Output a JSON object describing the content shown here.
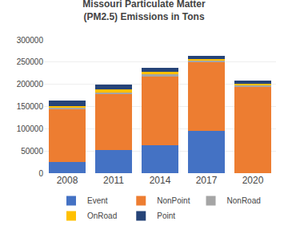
{
  "chart_data": {
    "type": "bar",
    "title": "Missouri Particulate Matter (PM2.5) Emissions in Tons",
    "categories": [
      "2008",
      "2011",
      "2014",
      "2017",
      "2020"
    ],
    "series": [
      {
        "name": "Event",
        "color": "#4472C4",
        "values": [
          25000,
          53000,
          63000,
          95000,
          0
        ]
      },
      {
        "name": "NonPoint",
        "color": "#ED7D31",
        "values": [
          120000,
          125000,
          155000,
          155000,
          195000
        ]
      },
      {
        "name": "NonRoad",
        "color": "#A5A5A5",
        "values": [
          3000,
          3000,
          4000,
          3000,
          3000
        ]
      },
      {
        "name": "OnRoad",
        "color": "#FFC000",
        "values": [
          3000,
          8000,
          7000,
          4000,
          3000
        ]
      },
      {
        "name": "Point",
        "color": "#264478",
        "values": [
          12000,
          11000,
          8000,
          7000,
          7000
        ]
      }
    ],
    "stacked": true,
    "ylim": [
      0,
      300000
    ],
    "yticks": [
      0,
      50000,
      100000,
      150000,
      200000,
      250000,
      300000
    ],
    "grid": true,
    "legend": "bottom"
  }
}
